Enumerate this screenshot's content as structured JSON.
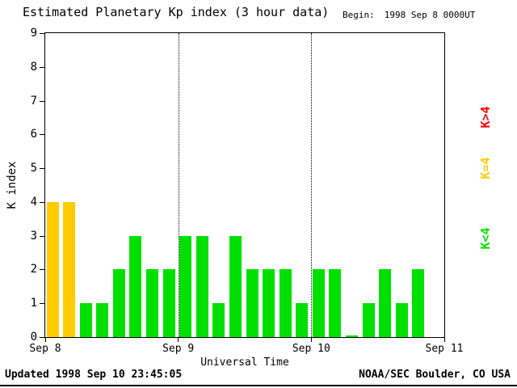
{
  "title": "Estimated Planetary Kp index (3 hour data)",
  "begin": {
    "label": "Begin:",
    "value": "1998 Sep 8 0000UT"
  },
  "legend": [
    {
      "label": "K>4",
      "color": "#ff0000"
    },
    {
      "label": "K=4",
      "color": "#ffcc00"
    },
    {
      "label": "K<4",
      "color": "#00e000"
    }
  ],
  "footer": {
    "updated": "Updated 1998 Sep 10 23:45:05",
    "source": "NOAA/SEC Boulder, CO USA"
  },
  "chart_data": {
    "type": "bar",
    "title": "Estimated Planetary Kp index (3 hour data)",
    "xlabel": "Universal Time",
    "ylabel": "K index",
    "ylim": [
      0,
      9
    ],
    "y_ticks": [
      0,
      1,
      2,
      3,
      4,
      5,
      6,
      7,
      8,
      9
    ],
    "x_ticks": [
      "Sep 8",
      "Sep 9",
      "Sep 10",
      "Sep 11"
    ],
    "gridlines_x": [
      "Sep 9",
      "Sep 10"
    ],
    "interval_hours": 3,
    "values": [
      4,
      4,
      1,
      1,
      2,
      3,
      2,
      2,
      3,
      3,
      1,
      3,
      2,
      2,
      2,
      1,
      2,
      2,
      0,
      1,
      2,
      1,
      2,
      null
    ],
    "days": [
      {
        "date": "Sep 8",
        "kp": [
          4,
          4,
          1,
          1,
          2,
          3,
          2,
          2
        ]
      },
      {
        "date": "Sep 9",
        "kp": [
          3,
          3,
          1,
          3,
          2,
          2,
          2,
          1
        ]
      },
      {
        "date": "Sep 10",
        "kp": [
          2,
          2,
          0,
          1,
          2,
          1,
          2,
          null
        ]
      }
    ],
    "colors_rule": {
      "gt4": "#ff0000",
      "eq4": "#ffcc00",
      "lt4": "#00e000"
    },
    "legend_position": "right",
    "grid": "vertical-dotted-at-day-boundaries"
  }
}
